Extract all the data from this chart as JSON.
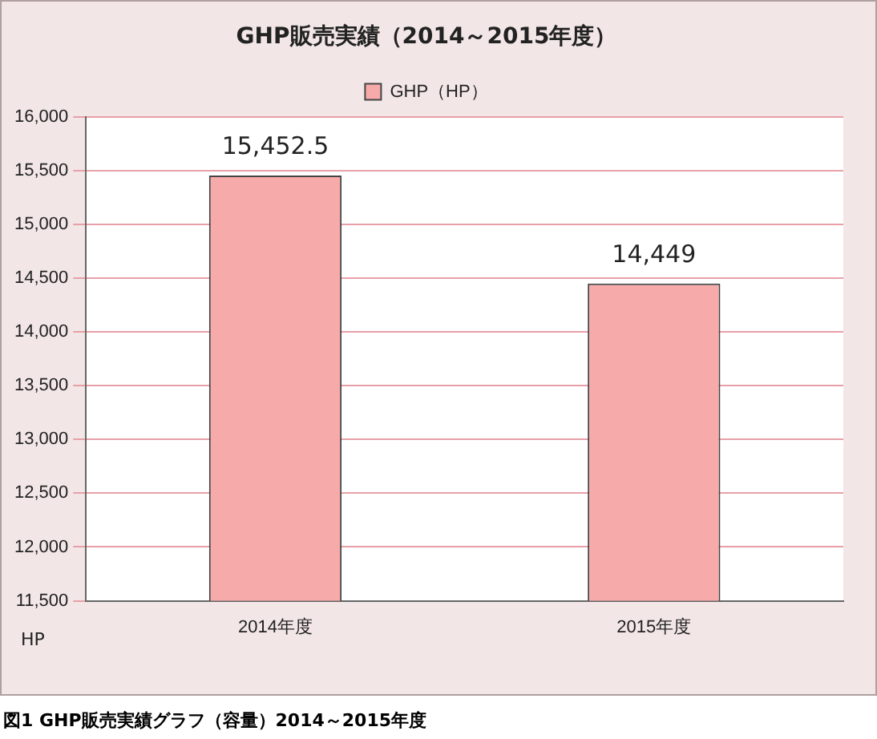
{
  "chart_data": {
    "type": "bar",
    "title": "GHP販売実績（2014～2015年度）",
    "ylabel": "HP",
    "categories": [
      "2014年度",
      "2015年度"
    ],
    "series": [
      {
        "name": "GHP（HP）",
        "color": "#f7aaaa",
        "values": [
          15452.5,
          14449
        ],
        "value_labels": [
          "15,452.5",
          "14,449"
        ]
      }
    ],
    "ylim": [
      11500,
      16000
    ],
    "yticks": [
      {
        "value": 11500,
        "label": "11,500"
      },
      {
        "value": 12000,
        "label": "12,000"
      },
      {
        "value": 12500,
        "label": "12,500"
      },
      {
        "value": 13000,
        "label": "13,000"
      },
      {
        "value": 13500,
        "label": "13,500"
      },
      {
        "value": 14000,
        "label": "14,000"
      },
      {
        "value": 14500,
        "label": "14,500"
      },
      {
        "value": 15000,
        "label": "15,000"
      },
      {
        "value": 15500,
        "label": "15,500"
      },
      {
        "value": 16000,
        "label": "16,000"
      }
    ],
    "grid": "y",
    "legend": "top",
    "annotations": [
      "図1 GHP販売実績グラフ（容量）2014～2015年度"
    ]
  }
}
